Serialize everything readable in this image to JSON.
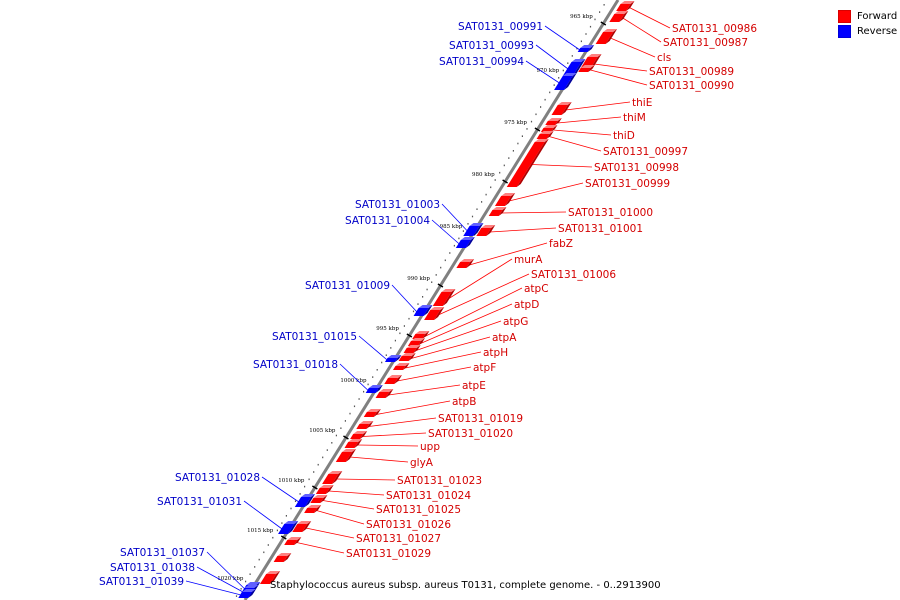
{
  "legend": {
    "forward_label": "Forward",
    "reverse_label": "Reverse",
    "forward_color": "#ff0000",
    "reverse_color": "#0000ff"
  },
  "caption": "Staphylococcus aureus subsp. aureus T0131, complete genome. - 0..2913900",
  "ticks": [
    "965 kbp",
    "970 kbp",
    "975 kbp",
    "980 kbp",
    "985 kbp",
    "990 kbp",
    "995 kbp",
    "1000 kbp",
    "1005 kbp",
    "1010 kbp",
    "1015 kbp",
    "1020 kbp"
  ],
  "forward_genes": [
    "SAT0131_00986",
    "SAT0131_00987",
    "cls",
    "SAT0131_00989",
    "SAT0131_00990",
    "thiE",
    "thiM",
    "thiD",
    "SAT0131_00997",
    "SAT0131_00998",
    "SAT0131_00999",
    "SAT0131_01000",
    "SAT0131_01001",
    "fabZ",
    "murA",
    "SAT0131_01006",
    "atpC",
    "atpD",
    "atpG",
    "atpA",
    "atpH",
    "atpF",
    "atpE",
    "atpB",
    "SAT0131_01019",
    "SAT0131_01020",
    "upp",
    "glyA",
    "SAT0131_01023",
    "SAT0131_01024",
    "SAT0131_01025",
    "SAT0131_01026",
    "SAT0131_01027",
    "SAT0131_01029"
  ],
  "reverse_genes": [
    "SAT0131_00991",
    "SAT0131_00993",
    "SAT0131_00994",
    "SAT0131_01003",
    "SAT0131_01004",
    "SAT0131_01009",
    "SAT0131_01015",
    "SAT0131_01018",
    "SAT0131_01028",
    "SAT0131_01031",
    "SAT0131_01037",
    "SAT0131_01038",
    "SAT0131_01039"
  ]
}
